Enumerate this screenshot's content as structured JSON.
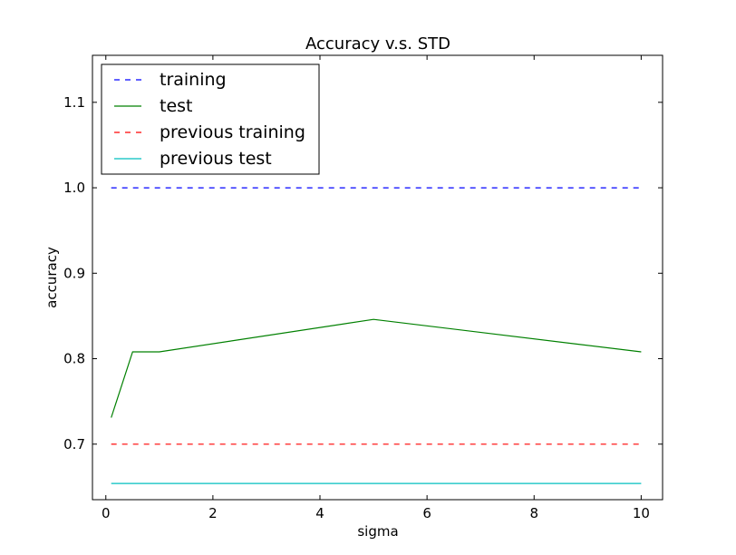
{
  "chart_data": {
    "type": "line",
    "title": "Accuracy v.s. STD",
    "xlabel": "sigma",
    "ylabel": "accuracy",
    "xlim": [
      -0.25,
      10.4
    ],
    "ylim": [
      0.635,
      1.155
    ],
    "xticks": [
      0,
      2,
      4,
      6,
      8,
      10
    ],
    "xtick_labels": [
      "0",
      "2",
      "4",
      "6",
      "8",
      "10"
    ],
    "yticks": [
      0.7,
      0.8,
      0.9,
      1.0,
      1.1
    ],
    "ytick_labels": [
      "0.7",
      "0.8",
      "0.9",
      "1.0",
      "1.1"
    ],
    "grid": false,
    "legend_position": "top-left",
    "series": [
      {
        "name": "training",
        "color": "#0000ff",
        "style": "dashed",
        "x": [
          0.1,
          0.5,
          1,
          5,
          10
        ],
        "values": [
          1.0,
          1.0,
          1.0,
          1.0,
          1.0
        ]
      },
      {
        "name": "test",
        "color": "#008000",
        "style": "solid",
        "x": [
          0.1,
          0.5,
          1,
          5,
          10
        ],
        "values": [
          0.731,
          0.808,
          0.808,
          0.846,
          0.808
        ]
      },
      {
        "name": "previous training",
        "color": "#ff0000",
        "style": "dashed",
        "x": [
          0.1,
          10
        ],
        "values": [
          0.7,
          0.7
        ]
      },
      {
        "name": "previous test",
        "color": "#00bfbf",
        "style": "solid",
        "x": [
          0.1,
          10
        ],
        "values": [
          0.654,
          0.654
        ]
      }
    ]
  }
}
